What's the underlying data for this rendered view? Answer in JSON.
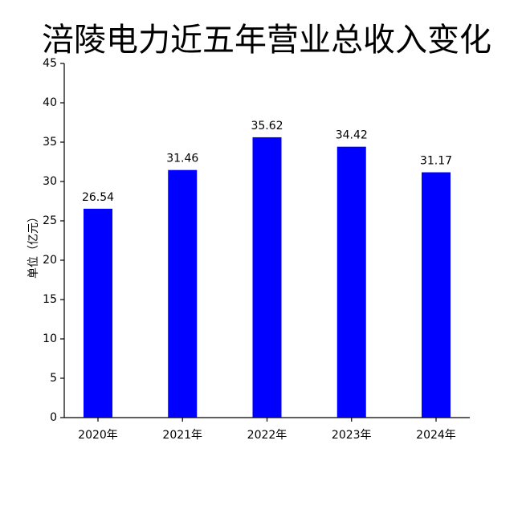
{
  "chart_data": {
    "type": "bar",
    "title": "涪陵电力近五年营业总收入变化",
    "y_label": "单位（亿元）",
    "categories": [
      "2020年",
      "2021年",
      "2022年",
      "2023年",
      "2024年"
    ],
    "values": [
      26.54,
      31.46,
      35.62,
      34.42,
      31.17
    ],
    "color": "#0000ff",
    "ylim": [
      0,
      45
    ],
    "yticks": [
      0,
      5,
      10,
      15,
      20,
      25,
      30,
      35,
      40,
      45
    ]
  }
}
